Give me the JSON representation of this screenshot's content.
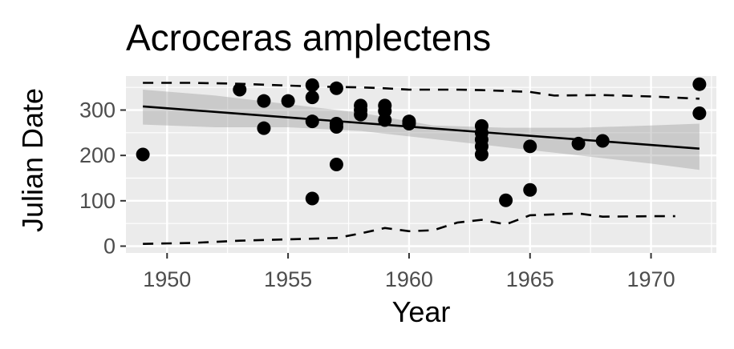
{
  "chart_data": {
    "type": "scatter",
    "title": "Acroceras amplectens",
    "xlabel": "Year",
    "ylabel": "Julian Date",
    "xlim": [
      1948.3,
      1972.7
    ],
    "ylim": [
      -15,
      375
    ],
    "x_ticks": [
      1950,
      1955,
      1960,
      1965,
      1970
    ],
    "y_ticks": [
      0,
      100,
      200,
      300
    ],
    "x_tick_labels": [
      "1950",
      "1955",
      "1960",
      "1965",
      "1970"
    ],
    "y_tick_labels": [
      "0",
      "100",
      "200",
      "300"
    ],
    "grid": true,
    "legend": "none",
    "points": [
      {
        "x": 1949,
        "y": 202
      },
      {
        "x": 1953,
        "y": 345
      },
      {
        "x": 1954,
        "y": 320
      },
      {
        "x": 1954,
        "y": 260
      },
      {
        "x": 1955,
        "y": 320
      },
      {
        "x": 1956,
        "y": 355
      },
      {
        "x": 1956,
        "y": 328
      },
      {
        "x": 1956,
        "y": 275
      },
      {
        "x": 1956,
        "y": 105
      },
      {
        "x": 1957,
        "y": 348
      },
      {
        "x": 1957,
        "y": 270
      },
      {
        "x": 1957,
        "y": 263
      },
      {
        "x": 1957,
        "y": 180
      },
      {
        "x": 1958,
        "y": 310
      },
      {
        "x": 1958,
        "y": 300
      },
      {
        "x": 1958,
        "y": 290
      },
      {
        "x": 1959,
        "y": 310
      },
      {
        "x": 1959,
        "y": 298
      },
      {
        "x": 1959,
        "y": 278
      },
      {
        "x": 1960,
        "y": 275
      },
      {
        "x": 1960,
        "y": 270
      },
      {
        "x": 1963,
        "y": 265
      },
      {
        "x": 1963,
        "y": 250
      },
      {
        "x": 1963,
        "y": 235
      },
      {
        "x": 1963,
        "y": 220
      },
      {
        "x": 1963,
        "y": 202
      },
      {
        "x": 1964,
        "y": 101
      },
      {
        "x": 1965,
        "y": 220
      },
      {
        "x": 1965,
        "y": 124
      },
      {
        "x": 1967,
        "y": 226
      },
      {
        "x": 1968,
        "y": 232
      },
      {
        "x": 1972,
        "y": 357
      },
      {
        "x": 1972,
        "y": 293
      }
    ],
    "fit_line": {
      "x": [
        1949,
        1972
      ],
      "y": [
        308,
        215
      ]
    },
    "confidence_band": {
      "x": [
        1949,
        1952,
        1955,
        1958,
        1961,
        1964,
        1967,
        1970,
        1972
      ],
      "lower": [
        268,
        262,
        262,
        254,
        236,
        218,
        200,
        182,
        168
      ],
      "upper": [
        345,
        332,
        313,
        294,
        266,
        261,
        261,
        266,
        270
      ]
    },
    "upper_quantile": {
      "x": [
        1949,
        1951,
        1953,
        1956,
        1958,
        1959,
        1960,
        1962,
        1963,
        1964,
        1965,
        1966,
        1968,
        1970,
        1972
      ],
      "y": [
        360,
        360,
        358,
        352,
        350,
        348,
        345,
        345,
        344,
        342,
        340,
        332,
        333,
        330,
        325
      ]
    },
    "lower_quantile": {
      "x": [
        1949,
        1951,
        1953,
        1955,
        1957,
        1958,
        1959,
        1960,
        1961,
        1962,
        1963,
        1964,
        1965,
        1966,
        1967,
        1968,
        1970,
        1971
      ],
      "y": [
        5,
        7,
        12,
        15,
        18,
        28,
        40,
        33,
        35,
        52,
        58,
        48,
        68,
        70,
        72,
        65,
        66,
        66
      ]
    },
    "colors": {
      "panel": "#ebebeb",
      "grid": "#ffffff",
      "points": "#000000",
      "fit": "#000000",
      "band": "#999999",
      "quantile": "#000000"
    }
  }
}
